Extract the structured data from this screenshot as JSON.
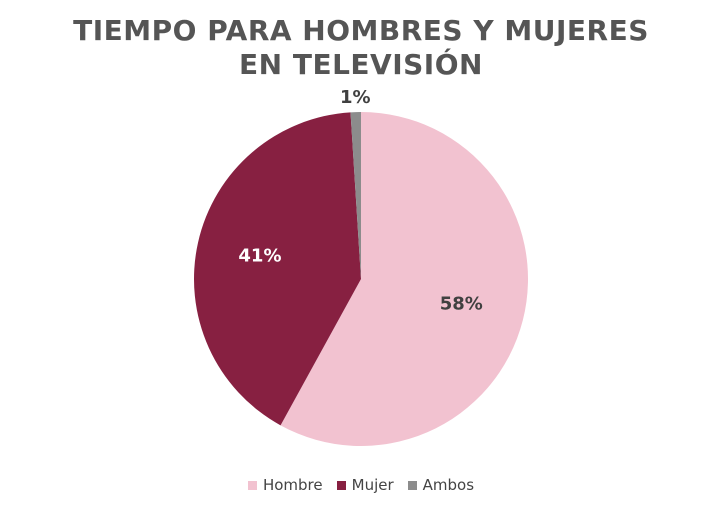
{
  "chart_data": {
    "type": "pie",
    "title_lines": [
      "TIEMPO PARA HOMBRES Y MUJERES",
      "EN TELEVISIÓN"
    ],
    "categories": [
      "Hombre",
      "Mujer",
      "Ambos"
    ],
    "values": [
      58,
      41,
      1
    ],
    "data_labels": [
      "58%",
      "41%",
      "1%"
    ],
    "colors": [
      "#f2c2d0",
      "#872041",
      "#8c8c8c"
    ],
    "label_colors": [
      "#404040",
      "#ffffff",
      "#404040"
    ],
    "legend_position": "bottom",
    "start_angle": "top (12 o'clock), clockwise"
  }
}
